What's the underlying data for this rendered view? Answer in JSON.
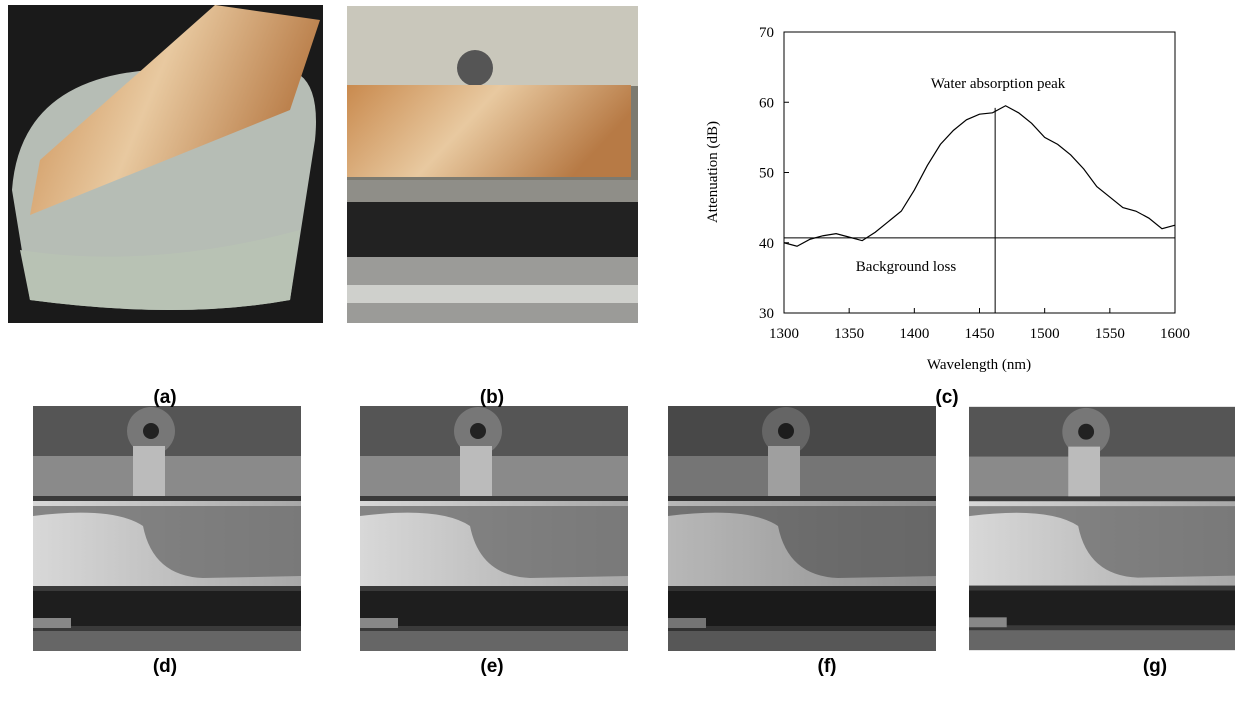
{
  "panel_labels": [
    "(a)",
    "(b)",
    "(c)",
    "(d)",
    "(e)",
    "(f)",
    "(g)"
  ],
  "chart_data": {
    "type": "line",
    "x_label": "Wavelength (nm)",
    "y_label": "Attenuation (dB)",
    "annotations": [
      "Water absorption peak",
      "Background loss"
    ],
    "x": [
      1300,
      1310,
      1320,
      1330,
      1340,
      1350,
      1360,
      1370,
      1380,
      1390,
      1400,
      1410,
      1420,
      1430,
      1440,
      1450,
      1460,
      1470,
      1480,
      1490,
      1500,
      1510,
      1520,
      1530,
      1540,
      1550,
      1560,
      1570,
      1580,
      1590,
      1600
    ],
    "values": [
      40.0,
      39.5,
      40.5,
      41.0,
      41.3,
      40.8,
      40.3,
      41.5,
      43.0,
      44.5,
      47.5,
      51.0,
      54.0,
      56.0,
      57.5,
      58.3,
      58.5,
      59.5,
      58.5,
      57.0,
      55.0,
      54.0,
      52.5,
      50.5,
      48.0,
      46.5,
      45.0,
      44.5,
      43.5,
      42.0,
      42.5
    ],
    "color": "#000000",
    "background_loss": 40.7,
    "peak_wavelength": 1462,
    "xlim": [
      1300,
      1600
    ],
    "xticks": [
      1300,
      1350,
      1400,
      1450,
      1500,
      1550,
      1600
    ],
    "ylim": [
      30,
      70
    ],
    "yticks": [
      30,
      40,
      50,
      60,
      70
    ]
  }
}
